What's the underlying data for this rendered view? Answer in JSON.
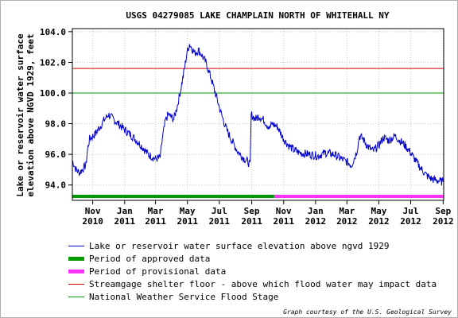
{
  "chart_data": {
    "type": "line",
    "title": "USGS 04279085 LAKE CHAMPLAIN NORTH OF WHITEHALL NY",
    "ylabel_line1": "Lake or reservoir water surface",
    "ylabel_line2": "elevation above NGVD 1929, feet",
    "ylim": [
      93.0,
      104.2
    ],
    "xlim": [
      "2010-09-23",
      "2012-09-02"
    ],
    "y_ticks": [
      "94.0",
      "96.0",
      "98.0",
      "100.0",
      "102.0",
      "104.0"
    ],
    "x_ticks": [
      {
        "date": "2010-11-01",
        "month": "Nov",
        "year": "2010"
      },
      {
        "date": "2011-01-01",
        "month": "Jan",
        "year": "2011"
      },
      {
        "date": "2011-03-01",
        "month": "Mar",
        "year": "2011"
      },
      {
        "date": "2011-05-01",
        "month": "May",
        "year": "2011"
      },
      {
        "date": "2011-07-01",
        "month": "Jul",
        "year": "2011"
      },
      {
        "date": "2011-09-01",
        "month": "Sep",
        "year": "2011"
      },
      {
        "date": "2011-11-01",
        "month": "Nov",
        "year": "2011"
      },
      {
        "date": "2012-01-01",
        "month": "Jan",
        "year": "2012"
      },
      {
        "date": "2012-03-01",
        "month": "Mar",
        "year": "2012"
      },
      {
        "date": "2012-05-01",
        "month": "May",
        "year": "2012"
      },
      {
        "date": "2012-07-01",
        "month": "Jul",
        "year": "2012"
      },
      {
        "date": "2012-09-01",
        "month": "Sep",
        "year": "2012"
      }
    ],
    "grid": true,
    "series": [
      {
        "name": "Lake or reservoir water surface elevation above ngvd 1929",
        "color": "#0000cc",
        "points": [
          [
            "2010-09-23",
            95.6
          ],
          [
            "2010-09-30",
            95.0
          ],
          [
            "2010-10-07",
            94.8
          ],
          [
            "2010-10-14",
            95.1
          ],
          [
            "2010-10-19",
            95.3
          ],
          [
            "2010-10-22",
            96.3
          ],
          [
            "2010-10-26",
            97.0
          ],
          [
            "2010-11-05",
            97.3
          ],
          [
            "2010-11-15",
            97.8
          ],
          [
            "2010-11-22",
            98.2
          ],
          [
            "2010-12-01",
            98.6
          ],
          [
            "2010-12-10",
            98.3
          ],
          [
            "2010-12-20",
            98.0
          ],
          [
            "2011-01-01",
            97.6
          ],
          [
            "2011-01-15",
            97.2
          ],
          [
            "2011-02-01",
            96.6
          ],
          [
            "2011-02-15",
            96.0
          ],
          [
            "2011-03-01",
            95.7
          ],
          [
            "2011-03-10",
            95.8
          ],
          [
            "2011-03-14",
            97.0
          ],
          [
            "2011-03-20",
            98.2
          ],
          [
            "2011-03-25",
            98.6
          ],
          [
            "2011-04-05",
            98.3
          ],
          [
            "2011-04-12",
            99.2
          ],
          [
            "2011-04-18",
            100.2
          ],
          [
            "2011-04-25",
            101.5
          ],
          [
            "2011-04-30",
            102.6
          ],
          [
            "2011-05-05",
            103.2
          ],
          [
            "2011-05-10",
            102.9
          ],
          [
            "2011-05-15",
            102.6
          ],
          [
            "2011-05-22",
            102.8
          ],
          [
            "2011-05-28",
            102.5
          ],
          [
            "2011-06-05",
            102.0
          ],
          [
            "2011-06-15",
            101.0
          ],
          [
            "2011-06-25",
            99.8
          ],
          [
            "2011-07-05",
            98.6
          ],
          [
            "2011-07-15",
            97.6
          ],
          [
            "2011-07-25",
            96.9
          ],
          [
            "2011-08-05",
            96.2
          ],
          [
            "2011-08-15",
            95.8
          ],
          [
            "2011-08-25",
            95.5
          ],
          [
            "2011-08-29",
            95.3
          ],
          [
            "2011-08-31",
            98.6
          ],
          [
            "2011-09-08",
            98.3
          ],
          [
            "2011-09-15",
            98.5
          ],
          [
            "2011-09-25",
            98.2
          ],
          [
            "2011-10-05",
            97.7
          ],
          [
            "2011-10-10",
            98.0
          ],
          [
            "2011-10-20",
            97.8
          ],
          [
            "2011-11-01",
            97.0
          ],
          [
            "2011-11-10",
            96.6
          ],
          [
            "2011-11-20",
            96.3
          ],
          [
            "2011-12-01",
            96.1
          ],
          [
            "2011-12-20",
            96.0
          ],
          [
            "2012-01-05",
            95.9
          ],
          [
            "2012-01-20",
            96.1
          ],
          [
            "2012-02-05",
            96.0
          ],
          [
            "2012-02-20",
            95.7
          ],
          [
            "2012-03-01",
            95.5
          ],
          [
            "2012-03-10",
            95.3
          ],
          [
            "2012-03-20",
            96.2
          ],
          [
            "2012-03-25",
            97.2
          ],
          [
            "2012-04-01",
            97.0
          ],
          [
            "2012-04-10",
            96.5
          ],
          [
            "2012-04-20",
            96.2
          ],
          [
            "2012-05-01",
            96.6
          ],
          [
            "2012-05-10",
            97.1
          ],
          [
            "2012-05-20",
            96.9
          ],
          [
            "2012-06-01",
            97.2
          ],
          [
            "2012-06-10",
            96.9
          ],
          [
            "2012-06-20",
            96.6
          ],
          [
            "2012-07-01",
            96.1
          ],
          [
            "2012-07-10",
            95.6
          ],
          [
            "2012-07-20",
            95.1
          ],
          [
            "2012-08-01",
            94.6
          ],
          [
            "2012-08-10",
            94.4
          ],
          [
            "2012-08-20",
            94.3
          ],
          [
            "2012-09-01",
            94.2
          ]
        ]
      }
    ],
    "reference_lines": [
      {
        "name": "Streamgage shelter floor - above which flood water may impact data",
        "value": 101.6,
        "color": "#cc0000"
      },
      {
        "name": "National Weather Service Flood Stage",
        "value": 100.0,
        "color": "#009900"
      }
    ],
    "period_bars": [
      {
        "name": "Period of approved data",
        "start": "2010-09-23",
        "end": "2011-10-14",
        "color": "#009900"
      },
      {
        "name": "Period of provisional data",
        "start": "2011-10-14",
        "end": "2012-09-02",
        "color": "#ff33ff"
      }
    ],
    "legend": [
      {
        "label": "Lake or reservoir water surface elevation above ngvd 1929",
        "color": "#0000cc",
        "style": "thin"
      },
      {
        "label": "Period of approved data",
        "color": "#009900",
        "style": "thick"
      },
      {
        "label": "Period of provisional data",
        "color": "#ff33ff",
        "style": "thick"
      },
      {
        "label": "Streamgage shelter floor - above which flood water may impact data",
        "color": "#cc0000",
        "style": "thin"
      },
      {
        "label": "National Weather Service Flood Stage",
        "color": "#009900",
        "style": "thin"
      }
    ],
    "credit": "Graph courtesy of the U.S. Geological Survey"
  }
}
